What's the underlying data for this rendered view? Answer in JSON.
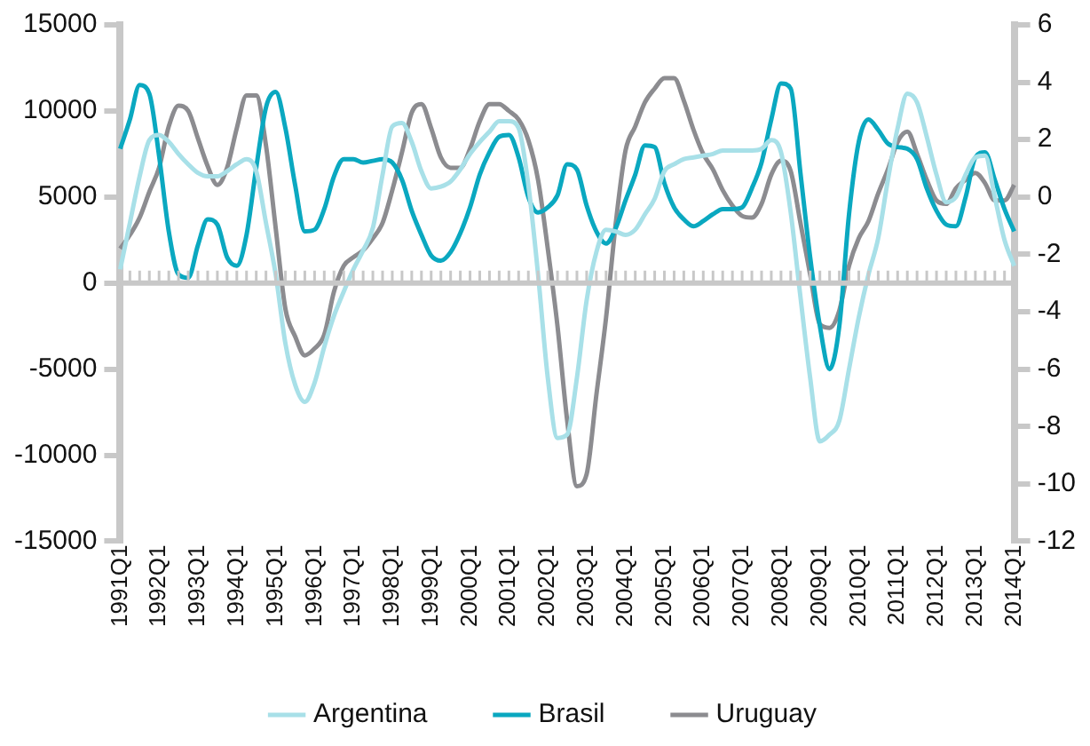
{
  "chart_data": {
    "type": "line",
    "categories": [
      "1991Q1",
      null,
      null,
      null,
      "1992Q1",
      null,
      null,
      null,
      "1993Q1",
      null,
      null,
      null,
      "1994Q1",
      null,
      null,
      null,
      "1995Q1",
      null,
      null,
      null,
      "1996Q1",
      null,
      null,
      null,
      "1997Q1",
      null,
      null,
      null,
      "1998Q1",
      null,
      null,
      null,
      "1999Q1",
      null,
      null,
      null,
      "2000Q1",
      null,
      null,
      null,
      "2001Q1",
      null,
      null,
      null,
      "2002Q1",
      null,
      null,
      null,
      "2003Q1",
      null,
      null,
      null,
      "2004Q1",
      null,
      null,
      null,
      "2005Q1",
      null,
      null,
      null,
      "2006Q1",
      null,
      null,
      null,
      "2007Q1",
      null,
      null,
      null,
      "2008Q1",
      null,
      null,
      null,
      "2009Q1",
      null,
      null,
      null,
      "2010Q1",
      null,
      null,
      null,
      "2011Q1",
      null,
      null,
      null,
      "2012Q1",
      null,
      null,
      null,
      "2013Q1",
      null,
      null,
      null,
      "2014Q1"
    ],
    "series": [
      {
        "name": "Argentina",
        "color": "#a8e0e8",
        "values": [
          800,
          3500,
          6200,
          8300,
          8600,
          8200,
          7500,
          6900,
          6400,
          6200,
          6200,
          6500,
          6900,
          7200,
          6500,
          3500,
          500,
          -3500,
          -5900,
          -6900,
          -5800,
          -3700,
          -1900,
          -500,
          800,
          1900,
          3200,
          6300,
          9100,
          9300,
          8200,
          6500,
          5500,
          5600,
          5900,
          6600,
          7500,
          8200,
          8800,
          9400,
          9400,
          9000,
          5700,
          500,
          -5500,
          -9000,
          -8800,
          -5500,
          -1000,
          1800,
          3100,
          3000,
          2800,
          3100,
          4000,
          4900,
          6500,
          6900,
          7200,
          7300,
          7400,
          7500,
          7700,
          7700,
          7700,
          7700,
          7800,
          8300,
          7600,
          4100,
          -800,
          -5500,
          -9200,
          -8800,
          -8000,
          -5000,
          -2000,
          500,
          2600,
          6000,
          9000,
          11000,
          10500,
          8500,
          6300,
          4700,
          5000,
          6300,
          7300,
          7400,
          5000,
          2500,
          1000
        ]
      },
      {
        "name": "Brasil",
        "color": "#0aa8c0",
        "values": [
          7800,
          9500,
          11500,
          11000,
          7400,
          3000,
          500,
          300,
          2200,
          3700,
          3400,
          1500,
          1000,
          2800,
          6700,
          10200,
          11100,
          9000,
          5700,
          3000,
          3100,
          4300,
          6200,
          7200,
          7200,
          7000,
          7100,
          7200,
          7000,
          6000,
          4200,
          2800,
          1600,
          1300,
          1800,
          2900,
          4400,
          6300,
          7600,
          8500,
          8600,
          7300,
          5000,
          4100,
          4400,
          5100,
          6900,
          6600,
          4500,
          3000,
          2300,
          3200,
          4800,
          6300,
          8000,
          7900,
          5800,
          4400,
          3700,
          3300,
          3600,
          4000,
          4300,
          4300,
          4400,
          5500,
          7000,
          9500,
          11600,
          11300,
          6400,
          1500,
          -2500,
          -5000,
          -2500,
          4000,
          8200,
          9500,
          8900,
          8100,
          7900,
          7800,
          7200,
          5500,
          4200,
          3400,
          3300,
          5000,
          7300,
          7600,
          6000,
          4300,
          3000
        ]
      },
      {
        "name": "Uruguay",
        "color": "#8c8c90",
        "values": [
          2000,
          2800,
          3800,
          5300,
          6700,
          9100,
          10300,
          10000,
          8400,
          6800,
          5700,
          6700,
          9000,
          10900,
          10900,
          8000,
          3200,
          -1500,
          -3100,
          -4200,
          -3800,
          -3000,
          -500,
          1000,
          1500,
          1900,
          2600,
          3500,
          5400,
          7600,
          9900,
          10400,
          9000,
          7300,
          6700,
          6700,
          7800,
          9400,
          10400,
          10400,
          10000,
          9500,
          8300,
          6000,
          2000,
          -2500,
          -8000,
          -11800,
          -11100,
          -6500,
          -2000,
          3500,
          7700,
          9100,
          10500,
          11300,
          11900,
          11900,
          10600,
          8900,
          7500,
          6600,
          5400,
          4500,
          3900,
          3800,
          4600,
          6300,
          7100,
          6500,
          3500,
          500,
          -2400,
          -2600,
          -1600,
          1000,
          2600,
          3600,
          5200,
          6600,
          8200,
          8800,
          7500,
          6000,
          4800,
          4600,
          5500,
          6000,
          6400,
          5800,
          4800,
          4800,
          5700
        ]
      }
    ],
    "ylim": [
      -15000,
      15000
    ],
    "yticks": [
      -15000,
      -10000,
      -5000,
      0,
      5000,
      10000,
      15000
    ],
    "y2lim": [
      -12,
      6
    ],
    "y2ticks": [
      -12,
      -10,
      -8,
      -6,
      -4,
      -2,
      0,
      2,
      4,
      6
    ],
    "ref_lines": [
      {
        "axis": "y",
        "value": 0,
        "color": "#c8c8c8"
      }
    ],
    "grid": false,
    "legend": "bottom",
    "marker": "none",
    "line_style": "solid"
  }
}
